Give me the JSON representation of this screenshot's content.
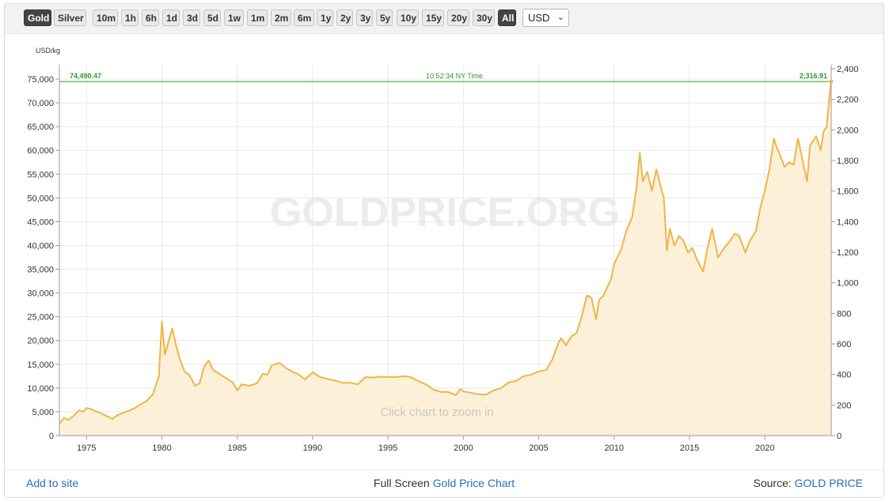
{
  "toolbar": {
    "metal_buttons": [
      {
        "label": "Gold",
        "active": true
      },
      {
        "label": "Silver",
        "active": false
      }
    ],
    "range_buttons": [
      {
        "label": "10m",
        "active": false
      },
      {
        "label": "1h",
        "active": false
      },
      {
        "label": "6h",
        "active": false
      },
      {
        "label": "1d",
        "active": false
      },
      {
        "label": "3d",
        "active": false
      },
      {
        "label": "5d",
        "active": false
      },
      {
        "label": "1w",
        "active": false
      },
      {
        "label": "1m",
        "active": false
      },
      {
        "label": "2m",
        "active": false
      },
      {
        "label": "6m",
        "active": false
      },
      {
        "label": "1y",
        "active": false
      },
      {
        "label": "2y",
        "active": false
      },
      {
        "label": "3y",
        "active": false
      },
      {
        "label": "5y",
        "active": false
      },
      {
        "label": "10y",
        "active": false
      },
      {
        "label": "15y",
        "active": false
      },
      {
        "label": "20y",
        "active": false
      },
      {
        "label": "30y",
        "active": false
      },
      {
        "label": "All",
        "active": true
      }
    ],
    "currency_selected": "USD"
  },
  "chart_data": {
    "type": "area",
    "ylabel_left": "USD/kg",
    "ylim_left": [
      0,
      78000
    ],
    "ylim_right": [
      0,
      2426.1
    ],
    "xlim": [
      1973.2,
      2024.4
    ],
    "x_ticks": [
      1975,
      1980,
      1985,
      1990,
      1995,
      2000,
      2005,
      2010,
      2015,
      2020
    ],
    "y_left_ticks": [
      0,
      5000,
      10000,
      15000,
      20000,
      25000,
      30000,
      35000,
      40000,
      45000,
      50000,
      55000,
      60000,
      65000,
      70000,
      75000
    ],
    "y_right_ticks": [
      0,
      200,
      400,
      600,
      800,
      1000,
      1200,
      1400,
      1600,
      1800,
      2000,
      2200,
      2400
    ],
    "grid": true,
    "current_line": {
      "left_value_label": "74,490.47",
      "time_label": "10:52:34 NY Time",
      "right_value_label": "2,316.91",
      "value": 74490.47
    },
    "watermark": "GOLDPRICE.ORG",
    "hint": "Click chart to zoom in",
    "colors": {
      "line": "#f0b545",
      "fill": "#fdf0d8",
      "current_line": "#2f9a2f",
      "grid": "#e8e8e8"
    },
    "series": [
      {
        "points": [
          [
            1973.2,
            2500
          ],
          [
            1973.5,
            3700
          ],
          [
            1973.8,
            3300
          ],
          [
            1974.2,
            4300
          ],
          [
            1974.5,
            5300
          ],
          [
            1974.8,
            5000
          ],
          [
            1975.0,
            5800
          ],
          [
            1975.3,
            5600
          ],
          [
            1975.6,
            5100
          ],
          [
            1975.9,
            4800
          ],
          [
            1976.2,
            4300
          ],
          [
            1976.5,
            3900
          ],
          [
            1976.7,
            3500
          ],
          [
            1977.0,
            4200
          ],
          [
            1977.5,
            4900
          ],
          [
            1977.8,
            5200
          ],
          [
            1978.2,
            5800
          ],
          [
            1978.6,
            6600
          ],
          [
            1979.0,
            7300
          ],
          [
            1979.4,
            8700
          ],
          [
            1979.8,
            12500
          ],
          [
            1980.0,
            24000
          ],
          [
            1980.2,
            17000
          ],
          [
            1980.5,
            20500
          ],
          [
            1980.7,
            22500
          ],
          [
            1980.9,
            19500
          ],
          [
            1981.2,
            16000
          ],
          [
            1981.5,
            13500
          ],
          [
            1981.8,
            12800
          ],
          [
            1982.2,
            10500
          ],
          [
            1982.5,
            11000
          ],
          [
            1982.8,
            14500
          ],
          [
            1983.1,
            15800
          ],
          [
            1983.4,
            13800
          ],
          [
            1983.8,
            13000
          ],
          [
            1984.3,
            12000
          ],
          [
            1984.7,
            11200
          ],
          [
            1985.0,
            9500
          ],
          [
            1985.3,
            10800
          ],
          [
            1985.8,
            10500
          ],
          [
            1986.3,
            11000
          ],
          [
            1986.7,
            13000
          ],
          [
            1987.0,
            12800
          ],
          [
            1987.3,
            14800
          ],
          [
            1987.8,
            15300
          ],
          [
            1988.2,
            14300
          ],
          [
            1988.6,
            13500
          ],
          [
            1989.0,
            13000
          ],
          [
            1989.5,
            11800
          ],
          [
            1990.0,
            13300
          ],
          [
            1990.5,
            12300
          ],
          [
            1991.0,
            11900
          ],
          [
            1991.5,
            11600
          ],
          [
            1992.0,
            11100
          ],
          [
            1992.5,
            11100
          ],
          [
            1993.0,
            10800
          ],
          [
            1993.5,
            12300
          ],
          [
            1994.0,
            12200
          ],
          [
            1994.5,
            12400
          ],
          [
            1995.0,
            12300
          ],
          [
            1995.5,
            12300
          ],
          [
            1996.0,
            12500
          ],
          [
            1996.5,
            12300
          ],
          [
            1997.0,
            11500
          ],
          [
            1997.5,
            10800
          ],
          [
            1998.0,
            9700
          ],
          [
            1998.5,
            9200
          ],
          [
            1999.0,
            9200
          ],
          [
            1999.5,
            8500
          ],
          [
            1999.8,
            9800
          ],
          [
            2000.0,
            9300
          ],
          [
            2000.5,
            9000
          ],
          [
            2001.0,
            8700
          ],
          [
            2001.5,
            8600
          ],
          [
            2002.0,
            9500
          ],
          [
            2002.5,
            10000
          ],
          [
            2003.0,
            11200
          ],
          [
            2003.5,
            11500
          ],
          [
            2004.0,
            12500
          ],
          [
            2004.5,
            12800
          ],
          [
            2005.0,
            13500
          ],
          [
            2005.5,
            13800
          ],
          [
            2005.9,
            16000
          ],
          [
            2006.3,
            19500
          ],
          [
            2006.5,
            20500
          ],
          [
            2006.8,
            19000
          ],
          [
            2007.2,
            21000
          ],
          [
            2007.5,
            21500
          ],
          [
            2007.8,
            24500
          ],
          [
            2008.2,
            29500
          ],
          [
            2008.5,
            29000
          ],
          [
            2008.8,
            24500
          ],
          [
            2009.0,
            28500
          ],
          [
            2009.3,
            29500
          ],
          [
            2009.8,
            33000
          ],
          [
            2010.0,
            36000
          ],
          [
            2010.5,
            39500
          ],
          [
            2010.8,
            43000
          ],
          [
            2011.2,
            46000
          ],
          [
            2011.5,
            52500
          ],
          [
            2011.7,
            59500
          ],
          [
            2011.9,
            53500
          ],
          [
            2012.2,
            55500
          ],
          [
            2012.5,
            51500
          ],
          [
            2012.8,
            56000
          ],
          [
            2013.0,
            53500
          ],
          [
            2013.3,
            50000
          ],
          [
            2013.5,
            39000
          ],
          [
            2013.7,
            43500
          ],
          [
            2014.0,
            40000
          ],
          [
            2014.3,
            42000
          ],
          [
            2014.6,
            41000
          ],
          [
            2014.9,
            38500
          ],
          [
            2015.2,
            39500
          ],
          [
            2015.5,
            37000
          ],
          [
            2015.9,
            34500
          ],
          [
            2016.2,
            39500
          ],
          [
            2016.5,
            43500
          ],
          [
            2016.9,
            37500
          ],
          [
            2017.3,
            39500
          ],
          [
            2017.7,
            41000
          ],
          [
            2018.0,
            42500
          ],
          [
            2018.3,
            42000
          ],
          [
            2018.7,
            38500
          ],
          [
            2019.0,
            41000
          ],
          [
            2019.4,
            43000
          ],
          [
            2019.7,
            48000
          ],
          [
            2020.0,
            51500
          ],
          [
            2020.3,
            56000
          ],
          [
            2020.6,
            62500
          ],
          [
            2020.8,
            60500
          ],
          [
            2021.0,
            59000
          ],
          [
            2021.3,
            56500
          ],
          [
            2021.6,
            57500
          ],
          [
            2021.9,
            57000
          ],
          [
            2022.2,
            62500
          ],
          [
            2022.5,
            58000
          ],
          [
            2022.8,
            53500
          ],
          [
            2023.0,
            61000
          ],
          [
            2023.4,
            63000
          ],
          [
            2023.7,
            60000
          ],
          [
            2023.9,
            64000
          ],
          [
            2024.1,
            65000
          ],
          [
            2024.3,
            72000
          ],
          [
            2024.4,
            74490
          ]
        ]
      }
    ]
  },
  "footer": {
    "add_to_site": "Add to site",
    "full_screen_prefix": "Full Screen",
    "full_screen_link": "Gold Price Chart",
    "source_prefix": "Source:",
    "source_link": "GOLD PRICE"
  }
}
